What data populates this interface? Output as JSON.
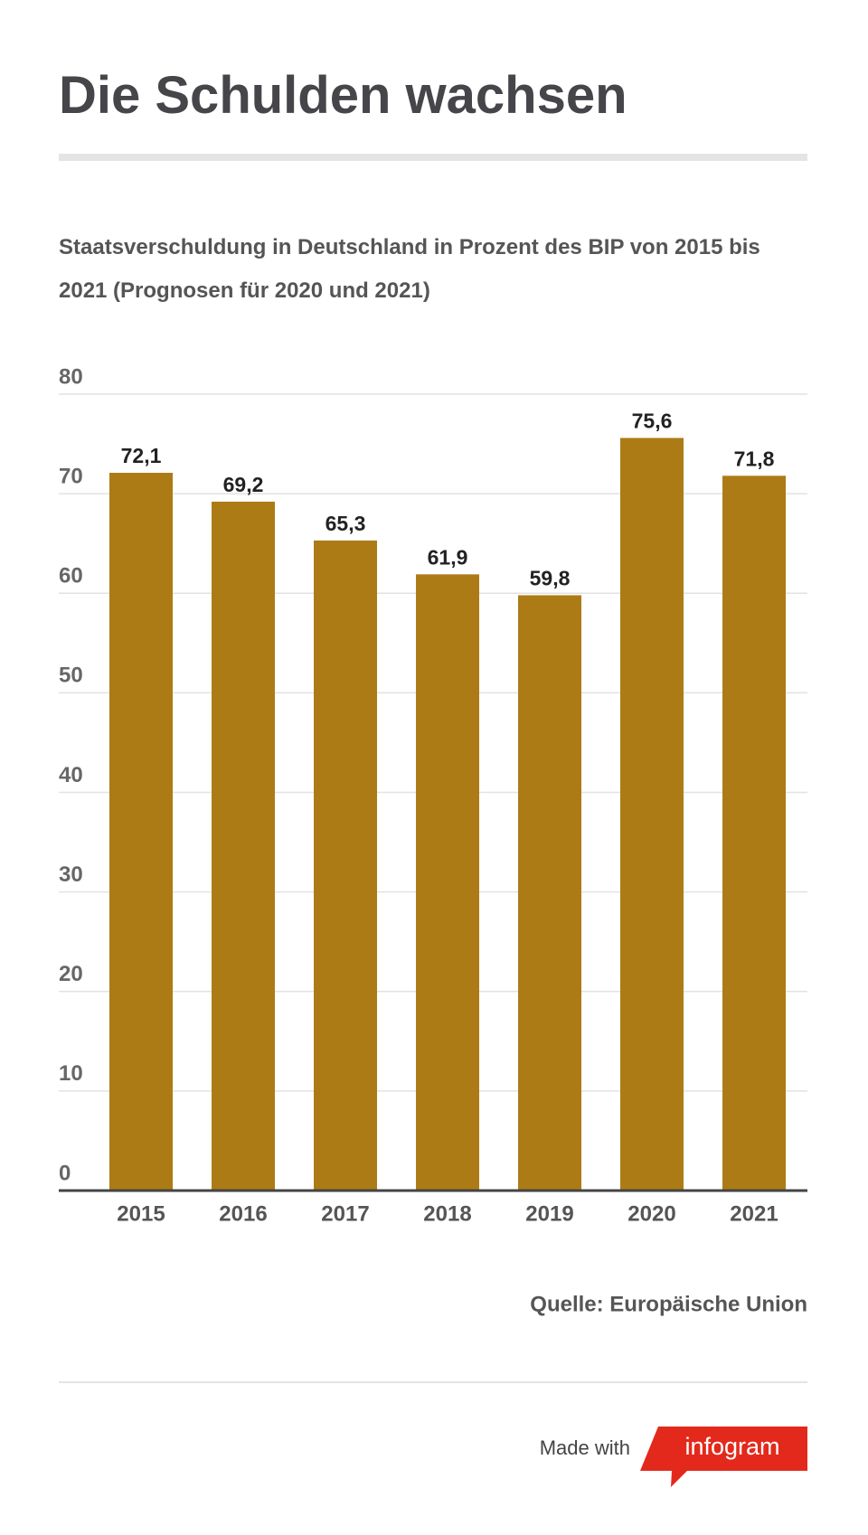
{
  "chart_data": {
    "type": "bar",
    "title": "Die Schulden wachsen",
    "subtitle": "Staatsverschuldung in Deutschland in Prozent des BIP von 2015 bis 2021 (Prognosen für 2020 und 2021)",
    "categories": [
      "2015",
      "2016",
      "2017",
      "2018",
      "2019",
      "2020",
      "2021"
    ],
    "values": [
      72.1,
      69.2,
      65.3,
      61.9,
      59.8,
      75.6,
      71.8
    ],
    "value_labels": [
      "72,1",
      "69,2",
      "65,3",
      "61,9",
      "59,8",
      "75,6",
      "71,8"
    ],
    "color": "#ad7b16",
    "ylim": [
      0,
      80
    ],
    "yticks": [
      0,
      10,
      20,
      30,
      40,
      50,
      60,
      70,
      80
    ],
    "grid": true,
    "source": "Quelle: Europäische Union",
    "footer": {
      "made_with": "Made with",
      "brand": "infogram"
    }
  }
}
